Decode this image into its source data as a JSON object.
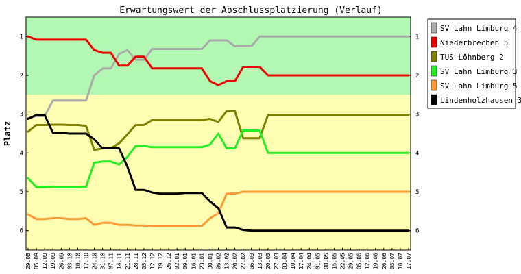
{
  "chart_data": {
    "type": "line",
    "title": "Erwartungswert der Abschlussplatzierung (Verlauf)",
    "ylabel": "Platz",
    "xlabel": "",
    "ylim": [
      0.5,
      6.5
    ],
    "yticks": [
      1,
      2,
      3,
      4,
      5,
      6
    ],
    "y_inverted": true,
    "grid": false,
    "legend_position": "right",
    "zones": [
      {
        "from": 0.5,
        "to": 2.5,
        "color": "#b2f7b2"
      },
      {
        "from": 2.5,
        "to": 6.5,
        "color": "#ffffb3"
      }
    ],
    "x": [
      "29.08",
      "05.09",
      "12.09",
      "19.09",
      "26.09",
      "03.10",
      "10.10",
      "17.10",
      "24.10",
      "31.10",
      "07.11",
      "14.11",
      "21.11",
      "28.11",
      "05.12",
      "12.12",
      "19.12",
      "26.12",
      "02.01",
      "09.01",
      "16.01",
      "23.01",
      "30.01",
      "06.02",
      "13.02",
      "20.02",
      "27.02",
      "06.03",
      "13.03",
      "20.03",
      "27.03",
      "03.04",
      "10.04",
      "17.04",
      "24.04",
      "01.05",
      "08.05",
      "15.05",
      "22.05",
      "29.05",
      "05.06",
      "12.06",
      "19.06",
      "26.06",
      "03.07",
      "10.07",
      "17.07"
    ],
    "series": [
      {
        "name": "SV Lahn Limburg 4",
        "color": "#aaaaaa",
        "values": [
          3.1,
          3.05,
          3.05,
          2.65,
          2.65,
          2.65,
          2.65,
          2.65,
          2.0,
          1.82,
          1.82,
          1.45,
          1.35,
          1.6,
          1.6,
          1.32,
          1.32,
          1.32,
          1.32,
          1.32,
          1.32,
          1.32,
          1.1,
          1.1,
          1.1,
          1.25,
          1.25,
          1.25,
          1.0,
          1.0,
          1.0,
          1.0,
          1.0,
          1.0,
          1.0,
          1.0,
          1.0,
          1.0,
          1.0,
          1.0,
          1.0,
          1.0,
          1.0,
          1.0,
          1.0,
          1.0,
          1.0
        ]
      },
      {
        "name": "Niederbrechen 5",
        "color": "#ee0000",
        "values": [
          1.0,
          1.08,
          1.08,
          1.08,
          1.08,
          1.08,
          1.08,
          1.08,
          1.35,
          1.42,
          1.42,
          1.75,
          1.75,
          1.52,
          1.52,
          1.82,
          1.82,
          1.82,
          1.82,
          1.82,
          1.82,
          1.82,
          2.15,
          2.25,
          2.15,
          2.15,
          1.78,
          1.78,
          1.78,
          2.0,
          2.0,
          2.0,
          2.0,
          2.0,
          2.0,
          2.0,
          2.0,
          2.0,
          2.0,
          2.0,
          2.0,
          2.0,
          2.0,
          2.0,
          2.0,
          2.0,
          2.0
        ]
      },
      {
        "name": "TUS Löhnberg 2",
        "color": "#808000",
        "values": [
          3.45,
          3.28,
          3.28,
          3.27,
          3.27,
          3.28,
          3.28,
          3.3,
          3.92,
          3.88,
          3.88,
          3.75,
          3.52,
          3.28,
          3.28,
          3.15,
          3.15,
          3.15,
          3.15,
          3.15,
          3.15,
          3.15,
          3.12,
          3.2,
          2.92,
          2.92,
          3.62,
          3.62,
          3.62,
          3.02,
          3.02,
          3.02,
          3.02,
          3.02,
          3.02,
          3.02,
          3.02,
          3.02,
          3.02,
          3.02,
          3.02,
          3.02,
          3.02,
          3.02,
          3.02,
          3.02,
          3.02
        ]
      },
      {
        "name": "SV Lahn Limburg 3",
        "color": "#22ee22",
        "values": [
          4.65,
          4.88,
          4.88,
          4.87,
          4.87,
          4.87,
          4.87,
          4.87,
          4.25,
          4.22,
          4.22,
          4.3,
          4.1,
          3.82,
          3.82,
          3.85,
          3.85,
          3.85,
          3.85,
          3.85,
          3.85,
          3.85,
          3.78,
          3.5,
          3.88,
          3.88,
          3.42,
          3.42,
          3.42,
          4.0,
          4.0,
          4.0,
          4.0,
          4.0,
          4.0,
          4.0,
          4.0,
          4.0,
          4.0,
          4.0,
          4.0,
          4.0,
          4.0,
          4.0,
          4.0,
          4.0,
          4.0
        ]
      },
      {
        "name": "SV Lahn Limburg 5",
        "color": "#ff9933",
        "values": [
          5.58,
          5.7,
          5.7,
          5.68,
          5.68,
          5.7,
          5.7,
          5.68,
          5.85,
          5.8,
          5.8,
          5.85,
          5.85,
          5.87,
          5.87,
          5.88,
          5.88,
          5.88,
          5.88,
          5.88,
          5.88,
          5.88,
          5.68,
          5.55,
          5.05,
          5.05,
          5.0,
          5.0,
          5.0,
          5.0,
          5.0,
          5.0,
          5.0,
          5.0,
          5.0,
          5.0,
          5.0,
          5.0,
          5.0,
          5.0,
          5.0,
          5.0,
          5.0,
          5.0,
          5.0,
          5.0,
          5.0
        ]
      },
      {
        "name": "Lindenholzhausen 3",
        "color": "#000000",
        "values": [
          3.12,
          3.02,
          3.02,
          3.48,
          3.48,
          3.5,
          3.5,
          3.5,
          3.65,
          3.88,
          3.88,
          3.88,
          4.35,
          4.95,
          4.95,
          5.02,
          5.05,
          5.05,
          5.05,
          5.03,
          5.03,
          5.03,
          5.25,
          5.42,
          5.92,
          5.92,
          5.98,
          6.0,
          6.0,
          6.0,
          6.0,
          6.0,
          6.0,
          6.0,
          6.0,
          6.0,
          6.0,
          6.0,
          6.0,
          6.0,
          6.0,
          6.0,
          6.0,
          6.0,
          6.0,
          6.0,
          6.0
        ]
      }
    ]
  }
}
